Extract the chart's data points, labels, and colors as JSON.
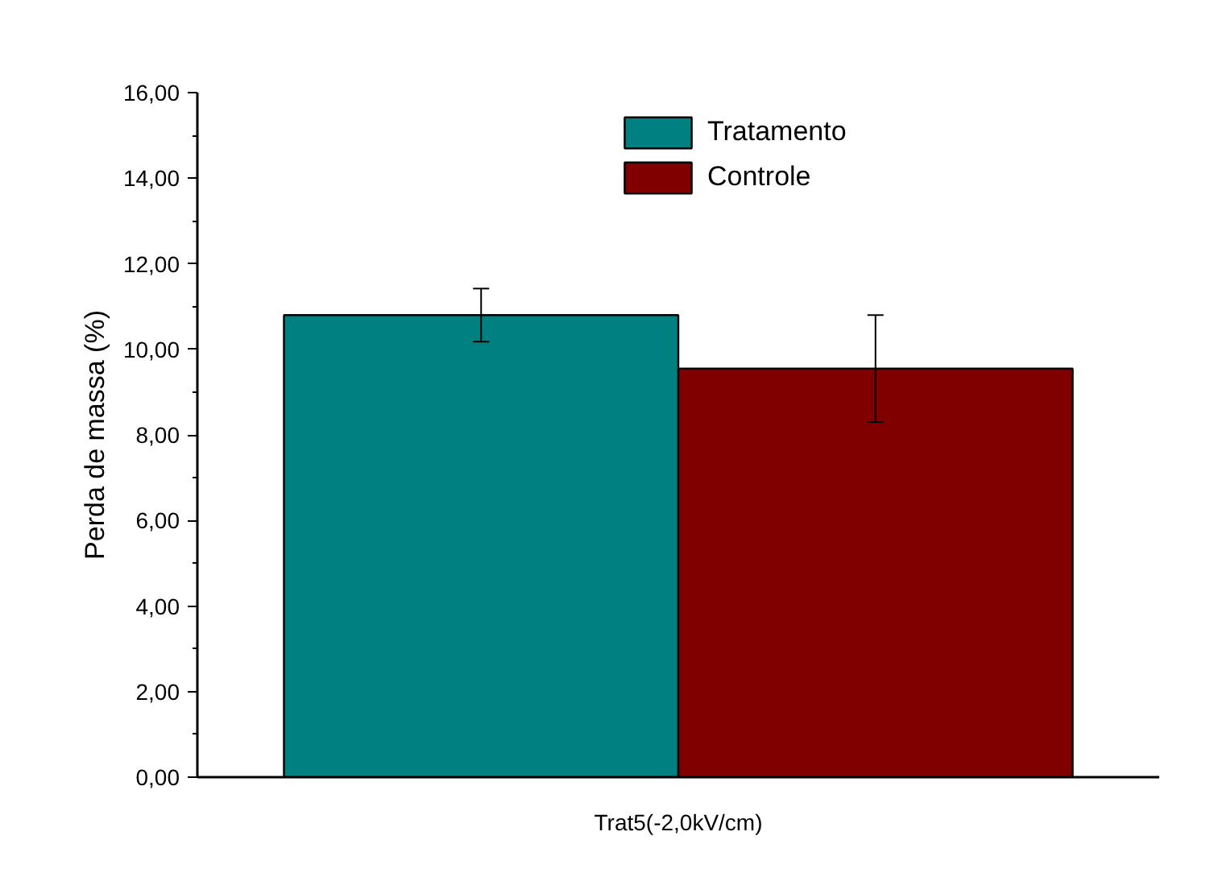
{
  "chart_data": {
    "type": "bar",
    "ylabel": "Perda de massa (%)",
    "categories": [
      "Trat5(-2,0kV/cm)"
    ],
    "series": [
      {
        "name": "Tratamento",
        "color": "#008080",
        "values": [
          10.8
        ],
        "errors": [
          0.62
        ]
      },
      {
        "name": "Controle",
        "color": "#800000",
        "values": [
          9.55
        ],
        "errors": [
          1.25
        ]
      }
    ],
    "ylim": [
      0,
      16
    ],
    "yticks": [
      {
        "value": 0,
        "label": "0,00"
      },
      {
        "value": 1,
        "label": null
      },
      {
        "value": 2,
        "label": "2,00"
      },
      {
        "value": 3,
        "label": null
      },
      {
        "value": 4,
        "label": "4,00"
      },
      {
        "value": 5,
        "label": null
      },
      {
        "value": 6,
        "label": "6,00"
      },
      {
        "value": 7,
        "label": null
      },
      {
        "value": 8,
        "label": "8,00"
      },
      {
        "value": 9,
        "label": null
      },
      {
        "value": 10,
        "label": "10,00"
      },
      {
        "value": 11,
        "label": null
      },
      {
        "value": 12,
        "label": "12,00"
      },
      {
        "value": 13,
        "label": null
      },
      {
        "value": 14,
        "label": "14,00"
      },
      {
        "value": 15,
        "label": null
      },
      {
        "value": 16,
        "label": "16,00"
      }
    ],
    "legend": "top",
    "grid": false
  }
}
